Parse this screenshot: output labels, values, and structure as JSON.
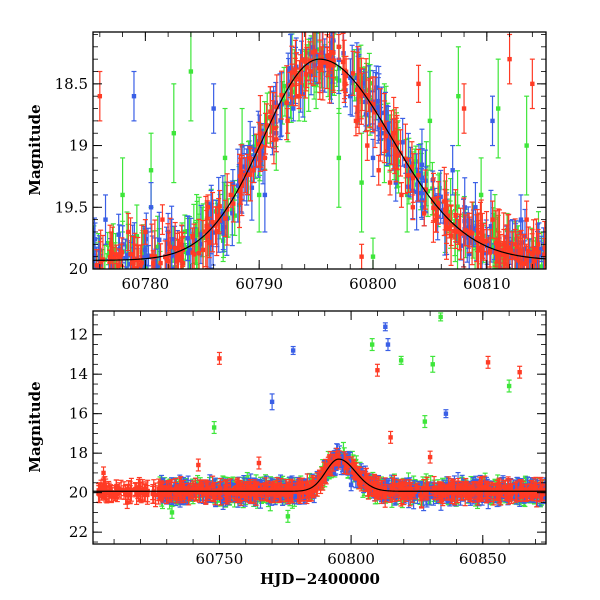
{
  "chart_data": [
    {
      "type": "scatter",
      "title": "",
      "xlabel": "",
      "ylabel": "Magnitude",
      "xlim": [
        60775.4,
        60815.2
      ],
      "ylim": [
        20.0,
        18.08
      ],
      "y_inverted": true,
      "x_ticks": [
        60780,
        60790,
        60800,
        60810
      ],
      "x_tick_labels": [
        "60780",
        "60790",
        "60800",
        "60810"
      ],
      "y_ticks": [
        18.5,
        19,
        19.5,
        20
      ],
      "y_tick_labels": [
        "18.5",
        "19",
        "19.5",
        "20"
      ],
      "minor_x_step": 2,
      "minor_y_step": 0.1,
      "grid": false,
      "model_curve": {
        "color": "#000000",
        "peak_x": 60795.3,
        "peak_y": 18.3,
        "baseline": 19.93,
        "rise_width_days": 7,
        "decay_width_days": 9
      },
      "series": [
        {
          "color": "#ff3b25",
          "points": [
            {
              "x": 60776.0,
              "y": 18.6,
              "err": 0.2
            },
            {
              "x": 60777.0,
              "y": 19.8,
              "err": 0.1
            },
            {
              "x": 60778.5,
              "y": 19.7,
              "err": 0.15
            },
            {
              "x": 60780.0,
              "y": 19.7,
              "err": 0.1
            },
            {
              "x": 60781.5,
              "y": 19.6,
              "err": 0.12
            },
            {
              "x": 60783.0,
              "y": 19.8,
              "err": 0.1
            },
            {
              "x": 60785.5,
              "y": 19.5,
              "err": 0.1
            },
            {
              "x": 60786.5,
              "y": 19.6,
              "err": 0.1
            },
            {
              "x": 60787.5,
              "y": 19.4,
              "err": 0.1
            },
            {
              "x": 60788.5,
              "y": 19.3,
              "err": 0.1
            },
            {
              "x": 60789.5,
              "y": 19.2,
              "err": 0.1
            },
            {
              "x": 60790.5,
              "y": 19.1,
              "err": 0.1
            },
            {
              "x": 60791.5,
              "y": 18.95,
              "err": 0.1
            },
            {
              "x": 60792.5,
              "y": 18.8,
              "err": 0.1
            },
            {
              "x": 60793.5,
              "y": 18.6,
              "err": 0.1
            },
            {
              "x": 60794.5,
              "y": 18.4,
              "err": 0.1
            },
            {
              "x": 60795.5,
              "y": 18.3,
              "err": 0.1
            },
            {
              "x": 60796.5,
              "y": 18.35,
              "err": 0.1
            },
            {
              "x": 60797.5,
              "y": 18.5,
              "err": 0.12
            },
            {
              "x": 60798.5,
              "y": 18.8,
              "err": 0.12
            },
            {
              "x": 60799.5,
              "y": 19.0,
              "err": 0.12
            },
            {
              "x": 60800.5,
              "y": 19.2,
              "err": 0.12
            },
            {
              "x": 60801.5,
              "y": 19.3,
              "err": 0.1
            },
            {
              "x": 60802.5,
              "y": 19.4,
              "err": 0.1
            },
            {
              "x": 60803.5,
              "y": 19.5,
              "err": 0.1
            },
            {
              "x": 60804.5,
              "y": 19.55,
              "err": 0.1
            },
            {
              "x": 60805.5,
              "y": 19.6,
              "err": 0.1
            },
            {
              "x": 60806.5,
              "y": 19.6,
              "err": 0.12
            },
            {
              "x": 60807.5,
              "y": 19.7,
              "err": 0.1
            },
            {
              "x": 60808.5,
              "y": 19.7,
              "err": 0.12
            },
            {
              "x": 60809.5,
              "y": 19.75,
              "err": 0.1
            },
            {
              "x": 60810.5,
              "y": 19.6,
              "err": 0.15
            },
            {
              "x": 60811.5,
              "y": 19.8,
              "err": 0.12
            },
            {
              "x": 60812.5,
              "y": 19.8,
              "err": 0.12
            },
            {
              "x": 60813.5,
              "y": 19.6,
              "err": 0.15
            },
            {
              "x": 60814.5,
              "y": 19.8,
              "err": 0.12
            },
            {
              "x": 60797.0,
              "y": 18.2,
              "err": 0.1
            },
            {
              "x": 60804.0,
              "y": 18.5,
              "err": 0.15
            },
            {
              "x": 60808.0,
              "y": 18.7,
              "err": 0.2
            },
            {
              "x": 60812.0,
              "y": 18.3,
              "err": 0.2
            },
            {
              "x": 60814.0,
              "y": 18.5,
              "err": 0.2
            },
            {
              "x": 60799.0,
              "y": 19.9,
              "err": 0.1
            }
          ]
        },
        {
          "color": "#3a5fe6",
          "points": [
            {
              "x": 60776.5,
              "y": 19.6,
              "err": 0.2
            },
            {
              "x": 60779.0,
              "y": 18.6,
              "err": 0.2
            },
            {
              "x": 60780.5,
              "y": 19.5,
              "err": 0.2
            },
            {
              "x": 60782.0,
              "y": 19.7,
              "err": 0.15
            },
            {
              "x": 60786.0,
              "y": 18.7,
              "err": 0.2
            },
            {
              "x": 60789.0,
              "y": 19.2,
              "err": 0.2
            },
            {
              "x": 60790.5,
              "y": 19.4,
              "err": 0.3
            },
            {
              "x": 60793.0,
              "y": 18.7,
              "err": 0.1
            },
            {
              "x": 60794.5,
              "y": 18.4,
              "err": 0.1
            },
            {
              "x": 60796.0,
              "y": 18.3,
              "err": 0.1
            },
            {
              "x": 60798.0,
              "y": 18.6,
              "err": 0.15
            },
            {
              "x": 60800.0,
              "y": 19.1,
              "err": 0.15
            },
            {
              "x": 60802.0,
              "y": 19.3,
              "err": 0.15
            },
            {
              "x": 60804.5,
              "y": 19.5,
              "err": 0.15
            },
            {
              "x": 60807.0,
              "y": 19.2,
              "err": 0.2
            },
            {
              "x": 60809.0,
              "y": 19.5,
              "err": 0.2
            },
            {
              "x": 60810.5,
              "y": 18.8,
              "err": 0.2
            },
            {
              "x": 60813.0,
              "y": 19.6,
              "err": 0.2
            },
            {
              "x": 60778.0,
              "y": 19.8,
              "err": 0.15
            },
            {
              "x": 60791.5,
              "y": 18.9,
              "err": 0.15
            }
          ]
        },
        {
          "color": "#3ee63a",
          "points": [
            {
              "x": 60776.0,
              "y": 19.9,
              "err": 0.15
            },
            {
              "x": 60778.0,
              "y": 19.4,
              "err": 0.3
            },
            {
              "x": 60780.5,
              "y": 19.2,
              "err": 0.3
            },
            {
              "x": 60782.5,
              "y": 18.9,
              "err": 0.4
            },
            {
              "x": 60784.0,
              "y": 18.4,
              "err": 0.4
            },
            {
              "x": 60787.0,
              "y": 19.1,
              "err": 0.4
            },
            {
              "x": 60788.5,
              "y": 19.0,
              "err": 0.3
            },
            {
              "x": 60790.0,
              "y": 19.4,
              "err": 0.3
            },
            {
              "x": 60791.5,
              "y": 18.9,
              "err": 0.3
            },
            {
              "x": 60793.5,
              "y": 18.6,
              "err": 0.2
            },
            {
              "x": 60795.0,
              "y": 18.5,
              "err": 0.2
            },
            {
              "x": 60797.0,
              "y": 19.1,
              "err": 0.4
            },
            {
              "x": 60799.0,
              "y": 19.3,
              "err": 0.4
            },
            {
              "x": 60801.0,
              "y": 18.9,
              "err": 0.4
            },
            {
              "x": 60803.0,
              "y": 19.4,
              "err": 0.3
            },
            {
              "x": 60805.0,
              "y": 18.8,
              "err": 0.4
            },
            {
              "x": 60807.5,
              "y": 18.6,
              "err": 0.4
            },
            {
              "x": 60809.5,
              "y": 19.4,
              "err": 0.3
            },
            {
              "x": 60811.0,
              "y": 18.7,
              "err": 0.4
            },
            {
              "x": 60813.5,
              "y": 19.0,
              "err": 0.4
            },
            {
              "x": 60785.0,
              "y": 19.7,
              "err": 0.2
            },
            {
              "x": 60800.0,
              "y": 19.9,
              "err": 0.15
            }
          ]
        }
      ]
    },
    {
      "type": "scatter",
      "title": "",
      "xlabel": "HJD−2400000",
      "ylabel": "Magnitude",
      "xlim": [
        60702,
        60874
      ],
      "ylim": [
        22.6,
        10.8
      ],
      "y_inverted": true,
      "x_ticks": [
        60750,
        60800,
        60850
      ],
      "x_tick_labels": [
        "60750",
        "60800",
        "60850"
      ],
      "y_ticks": [
        12,
        14,
        16,
        18,
        20,
        22
      ],
      "y_tick_labels": [
        "12",
        "14",
        "16",
        "18",
        "20",
        "22"
      ],
      "minor_x_step": 10,
      "minor_y_step": 0.5,
      "grid": false,
      "model_curve": {
        "color": "#000000",
        "peak_x": 60795.3,
        "peak_y": 18.3,
        "baseline": 19.93,
        "rise_width_days": 7,
        "decay_width_days": 9
      },
      "series": [
        {
          "color": "#ff3b25",
          "points": [
            {
              "x": 60706,
              "y": 19.0,
              "err": 0.3
            },
            {
              "x": 60709,
              "y": 20.2,
              "err": 0.3
            },
            {
              "x": 60712,
              "y": 19.8,
              "err": 0.3
            },
            {
              "x": 60715,
              "y": 20.5,
              "err": 0.3
            },
            {
              "x": 60719,
              "y": 20.0,
              "err": 0.3
            },
            {
              "x": 60728,
              "y": 19.7,
              "err": 0.3
            },
            {
              "x": 60735,
              "y": 19.9,
              "err": 0.3
            },
            {
              "x": 60742,
              "y": 18.6,
              "err": 0.3
            },
            {
              "x": 60750,
              "y": 13.2,
              "err": 0.3
            },
            {
              "x": 60758,
              "y": 19.8,
              "err": 0.3
            },
            {
              "x": 60765,
              "y": 18.5,
              "err": 0.3
            },
            {
              "x": 60772,
              "y": 19.9,
              "err": 0.3
            },
            {
              "x": 60780,
              "y": 19.7,
              "err": 0.3
            },
            {
              "x": 60788,
              "y": 19.2,
              "err": 0.3
            },
            {
              "x": 60795,
              "y": 18.3,
              "err": 0.3
            },
            {
              "x": 60803,
              "y": 19.5,
              "err": 0.3
            },
            {
              "x": 60810,
              "y": 13.8,
              "err": 0.3
            },
            {
              "x": 60815,
              "y": 17.2,
              "err": 0.3
            },
            {
              "x": 60822,
              "y": 19.8,
              "err": 0.3
            },
            {
              "x": 60830,
              "y": 18.2,
              "err": 0.3
            },
            {
              "x": 60838,
              "y": 19.6,
              "err": 0.3
            },
            {
              "x": 60845,
              "y": 20.0,
              "err": 0.3
            },
            {
              "x": 60852,
              "y": 13.4,
              "err": 0.3
            },
            {
              "x": 60858,
              "y": 19.7,
              "err": 0.3
            },
            {
              "x": 60864,
              "y": 13.9,
              "err": 0.3
            },
            {
              "x": 60867,
              "y": 20.1,
              "err": 0.3
            }
          ]
        },
        {
          "color": "#3a5fe6",
          "points": [
            {
              "x": 60740,
              "y": 20.1,
              "err": 0.3
            },
            {
              "x": 60754,
              "y": 19.9,
              "err": 0.3
            },
            {
              "x": 60770,
              "y": 15.4,
              "err": 0.4
            },
            {
              "x": 60778,
              "y": 12.8,
              "err": 0.2
            },
            {
              "x": 60786,
              "y": 20.2,
              "err": 0.3
            },
            {
              "x": 60800,
              "y": 19.6,
              "err": 0.3
            },
            {
              "x": 60813,
              "y": 11.6,
              "err": 0.2
            },
            {
              "x": 60814,
              "y": 12.5,
              "err": 0.3
            },
            {
              "x": 60826,
              "y": 19.8,
              "err": 0.3
            },
            {
              "x": 60836,
              "y": 16.0,
              "err": 0.2
            },
            {
              "x": 60850,
              "y": 20.0,
              "err": 0.3
            },
            {
              "x": 60862,
              "y": 19.8,
              "err": 0.3
            }
          ]
        },
        {
          "color": "#3ee63a",
          "points": [
            {
              "x": 60732,
              "y": 21.0,
              "err": 0.3
            },
            {
              "x": 60748,
              "y": 16.7,
              "err": 0.3
            },
            {
              "x": 60760,
              "y": 20.3,
              "err": 0.3
            },
            {
              "x": 60776,
              "y": 21.2,
              "err": 0.3
            },
            {
              "x": 60790,
              "y": 19.4,
              "err": 0.3
            },
            {
              "x": 60808,
              "y": 12.5,
              "err": 0.3
            },
            {
              "x": 60819,
              "y": 13.3,
              "err": 0.2
            },
            {
              "x": 60828,
              "y": 16.4,
              "err": 0.3
            },
            {
              "x": 60831,
              "y": 13.5,
              "err": 0.4
            },
            {
              "x": 60834,
              "y": 11.1,
              "err": 0.2
            },
            {
              "x": 60848,
              "y": 20.5,
              "err": 0.3
            },
            {
              "x": 60860,
              "y": 14.6,
              "err": 0.3
            },
            {
              "x": 60866,
              "y": 20.4,
              "err": 0.3
            }
          ]
        }
      ]
    }
  ]
}
